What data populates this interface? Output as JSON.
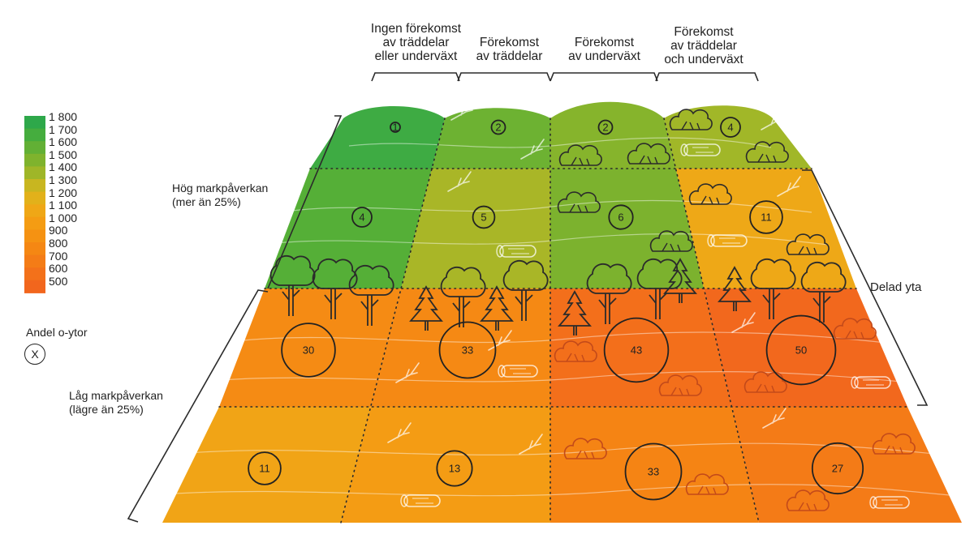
{
  "column_headers": [
    [
      "Ingen förekomst",
      "av träddelar",
      "eller underväxt"
    ],
    [
      "Förekomst",
      "av träddelar"
    ],
    [
      "Förekomst",
      "av underväxt"
    ],
    [
      "Förekomst",
      "av träddelar",
      "och underväxt"
    ]
  ],
  "row_labels": {
    "high": [
      "Hög markpåverkan",
      "(mer än 25%)"
    ],
    "low": [
      "Låg markpåverkan",
      "(lägre än 25%)"
    ]
  },
  "delad_yta": "Delad yta",
  "legend": {
    "values": [
      "1 800",
      "1 700",
      "1 600",
      "1 500",
      "1 400",
      "1 300",
      "1 200",
      "1 100",
      "1 000",
      "900",
      "800",
      "700",
      "600",
      "500"
    ],
    "colors": [
      "#2ea84a",
      "#45ad3e",
      "#62b035",
      "#7fb32d",
      "#9fb628",
      "#c8b620",
      "#e2b11a",
      "#efa716",
      "#f49c13",
      "#f59212",
      "#f58713",
      "#f47c16",
      "#f3711a",
      "#f2661d"
    ]
  },
  "andel": {
    "label": "Andel o-ytor",
    "symbol": "X"
  },
  "cells": [
    {
      "row": 0,
      "col": 0,
      "value": "1",
      "color": "#3eab43"
    },
    {
      "row": 0,
      "col": 1,
      "value": "2",
      "color": "#6db232"
    },
    {
      "row": 0,
      "col": 2,
      "value": "2",
      "color": "#86b42c"
    },
    {
      "row": 0,
      "col": 3,
      "value": "4",
      "color": "#a1b728"
    },
    {
      "row": 1,
      "col": 0,
      "value": "4",
      "color": "#55af37"
    },
    {
      "row": 1,
      "col": 1,
      "value": "5",
      "color": "#a9b627"
    },
    {
      "row": 1,
      "col": 2,
      "value": "6",
      "color": "#7cb22e"
    },
    {
      "row": 1,
      "col": 3,
      "value": "11",
      "color": "#eea817"
    },
    {
      "row": 2,
      "col": 0,
      "value": "30",
      "color": "#f58b14"
    },
    {
      "row": 2,
      "col": 1,
      "value": "33",
      "color": "#f58914"
    },
    {
      "row": 2,
      "col": 2,
      "value": "43",
      "color": "#f36f1b"
    },
    {
      "row": 2,
      "col": 3,
      "value": "50",
      "color": "#f2681d"
    },
    {
      "row": 3,
      "col": 0,
      "value": "11",
      "color": "#f1a416"
    },
    {
      "row": 3,
      "col": 1,
      "value": "13",
      "color": "#f49c14"
    },
    {
      "row": 3,
      "col": 2,
      "value": "33",
      "color": "#f58414"
    },
    {
      "row": 3,
      "col": 3,
      "value": "27",
      "color": "#f47b17"
    }
  ]
}
